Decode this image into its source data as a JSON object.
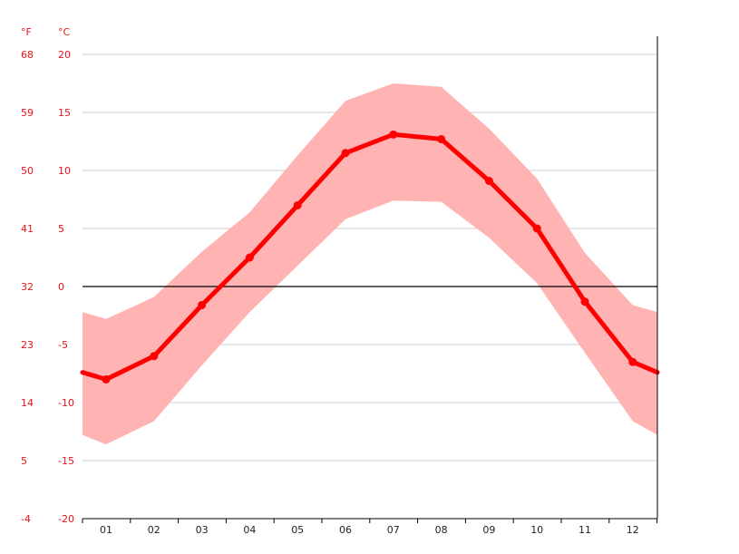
{
  "chart_data": {
    "type": "line",
    "units": {
      "fahrenheit": "°F",
      "celsius": "°C"
    },
    "x": [
      "01",
      "02",
      "03",
      "04",
      "05",
      "06",
      "07",
      "08",
      "09",
      "10",
      "11",
      "12"
    ],
    "ylim": [
      -20,
      20
    ],
    "y_ticks_celsius": [
      "20",
      "15",
      "10",
      "5",
      "0",
      "-5",
      "-10",
      "-15",
      "-20"
    ],
    "y_ticks_fahrenheit": [
      "68",
      "59",
      "50",
      "41",
      "32",
      "23",
      "14",
      "5",
      "-4"
    ],
    "grid": true,
    "zero_line": true,
    "series": [
      {
        "kind": "line",
        "values": [
          -8.0,
          -6.0,
          -1.6,
          2.5,
          7.0,
          11.5,
          13.1,
          12.7,
          9.1,
          5.0,
          -1.3,
          -6.5
        ]
      },
      {
        "kind": "band",
        "upper": [
          -2.8,
          -0.9,
          3.0,
          6.4,
          11.3,
          16.0,
          17.5,
          17.2,
          13.6,
          9.3,
          2.9,
          -1.6
        ],
        "lower": [
          -13.6,
          -11.6,
          -6.8,
          -2.2,
          1.8,
          5.8,
          7.4,
          7.3,
          4.2,
          0.3,
          -5.7,
          -11.6
        ]
      }
    ],
    "band_extension": {
      "left": {
        "upper": -2.2,
        "lower": -12.8,
        "line": -7.4
      },
      "right": {
        "upper": -2.2,
        "lower": -12.8,
        "line": -7.4
      }
    },
    "colors": {
      "line": "#ff0000",
      "band": "#ffb3b3",
      "tick_label": "#e8101a",
      "grid": "#cccccc",
      "zero": "#000000"
    }
  }
}
